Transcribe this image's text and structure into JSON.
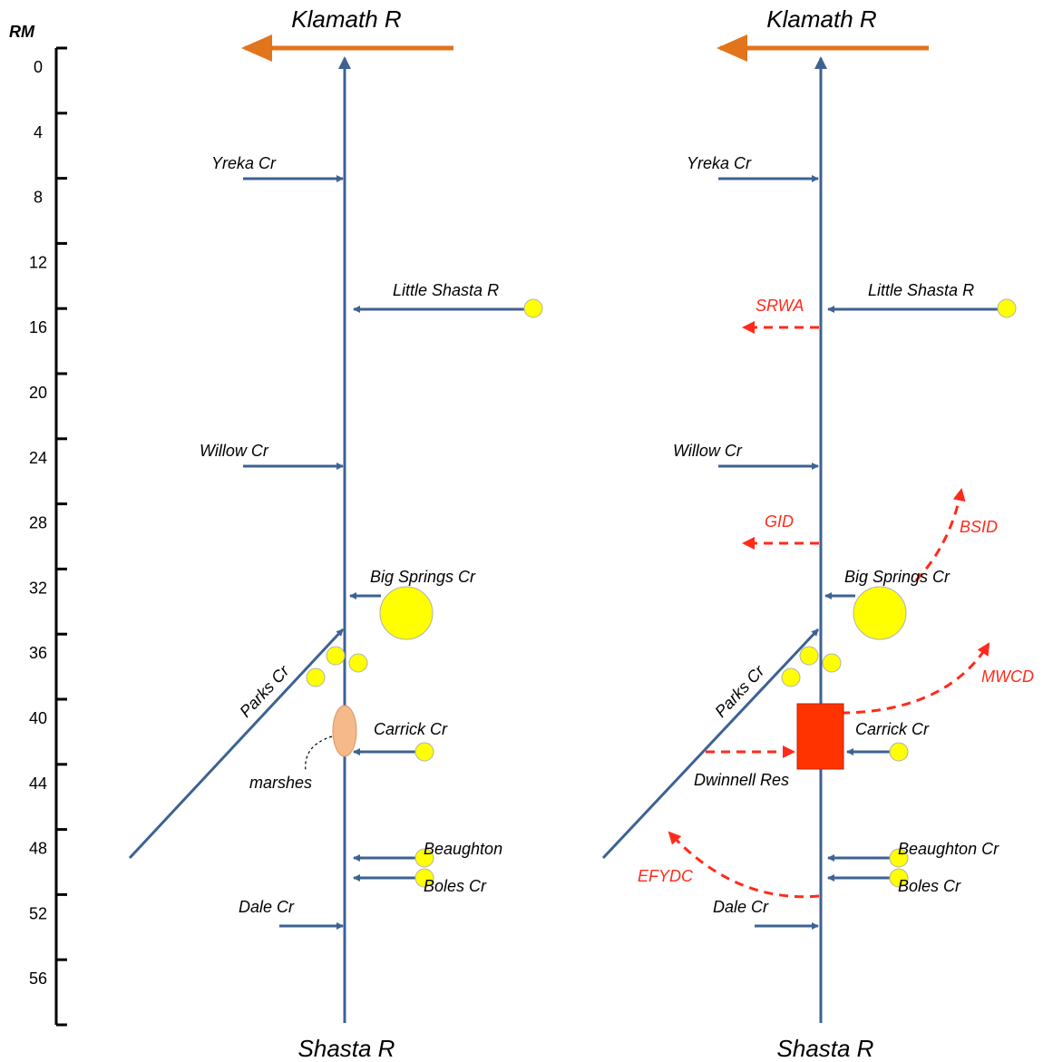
{
  "scale": {
    "unit_label": "RM",
    "ticks": [
      "0",
      "4",
      "8",
      "12",
      "16",
      "20",
      "24",
      "28",
      "32",
      "36",
      "40",
      "44",
      "48",
      "52",
      "56"
    ]
  },
  "panels": [
    {
      "top_label": "Klamath R",
      "bottom_label": "Shasta R",
      "tributaries": {
        "yreka": "Yreka Cr",
        "little_shasta": "Little Shasta R",
        "willow": "Willow Cr",
        "big_springs": "Big Springs Cr",
        "parks": "Parks Cr",
        "carrick": "Carrick Cr",
        "beaughton": "Beaughton",
        "boles": "Boles Cr",
        "dale": "Dale Cr"
      },
      "features": {
        "marshes": "marshes"
      }
    },
    {
      "top_label": "Klamath R",
      "bottom_label": "Shasta R",
      "tributaries": {
        "yreka": "Yreka Cr",
        "little_shasta": "Little Shasta R",
        "willow": "Willow Cr",
        "big_springs": "Big Springs Cr",
        "parks": "Parks Cr",
        "carrick": "Carrick Cr",
        "beaughton": "Beaughton Cr",
        "boles": "Boles Cr",
        "dale": "Dale Cr"
      },
      "features": {
        "reservoir": "Dwinnell Res"
      },
      "diversions": {
        "srwa": "SRWA",
        "gid": "GID",
        "bsid": "BSID",
        "mwcd": "MWCD",
        "efydc": "EFYDC"
      }
    }
  ],
  "colors": {
    "river": "#3d6293",
    "klamath_arrow": "#e2741c",
    "spring": "#ffff00",
    "marsh": "#f5b98a",
    "reservoir": "#ff3300",
    "diversion": "#ff2a1a"
  }
}
